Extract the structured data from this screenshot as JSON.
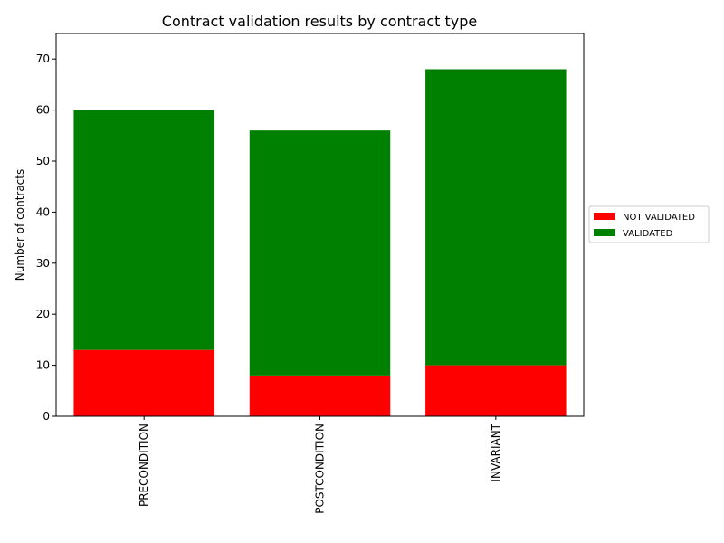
{
  "chart_data": {
    "type": "bar",
    "stacked": true,
    "title": "Contract validation results by contract type",
    "xlabel": "",
    "ylabel": "Number of contracts",
    "categories": [
      "PRECONDITION",
      "POSTCONDITION",
      "INVARIANT"
    ],
    "series": [
      {
        "name": "NOT VALIDATED",
        "color": "#ff0000",
        "values": [
          13,
          8,
          10
        ]
      },
      {
        "name": "VALIDATED",
        "color": "#008000",
        "values": [
          47,
          48,
          58
        ]
      }
    ],
    "ylim": [
      0,
      75
    ],
    "yticks": [
      0,
      10,
      20,
      30,
      40,
      50,
      60,
      70
    ],
    "grid": false,
    "legend_position": "right",
    "x_tick_rotation": 90
  }
}
